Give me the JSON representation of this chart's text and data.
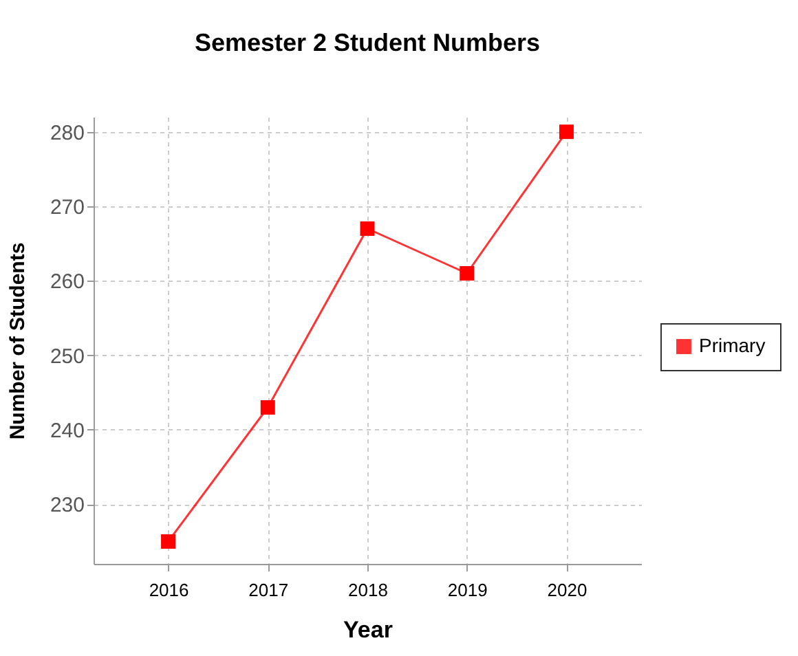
{
  "chart_data": {
    "type": "line",
    "title": "Semester 2 Student Numbers",
    "xlabel": "Year",
    "ylabel": "Number of Students",
    "categories": [
      "2016",
      "2017",
      "2018",
      "2019",
      "2020"
    ],
    "series": [
      {
        "name": "Primary",
        "color": "#ff0000",
        "values": [
          225,
          243,
          267,
          261,
          280
        ]
      }
    ],
    "ylim": [
      222,
      282
    ],
    "yticks": [
      230,
      240,
      250,
      260,
      270,
      280
    ],
    "grid": true,
    "legend": "right",
    "marker": "square",
    "line_style": "solid"
  }
}
